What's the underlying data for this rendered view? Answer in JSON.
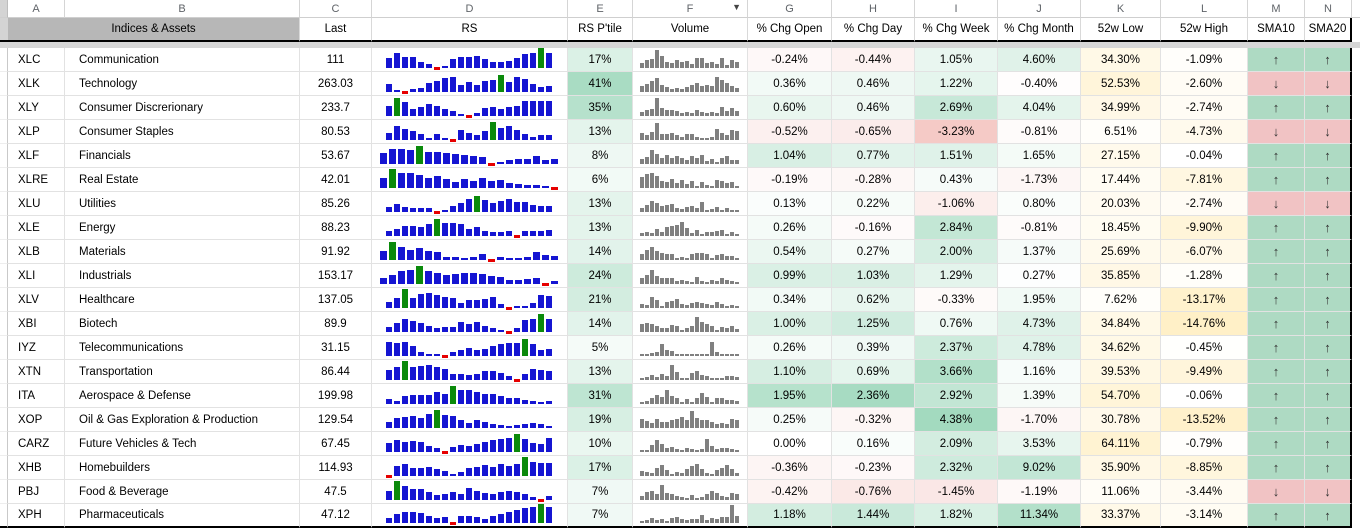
{
  "sheet": {
    "column_letters": [
      "A",
      "B",
      "C",
      "D",
      "E",
      "F",
      "G",
      "H",
      "I",
      "J",
      "K",
      "L",
      "M",
      "N"
    ],
    "filter_column": "F",
    "header": {
      "indices_assets": "Indices & Assets",
      "last": "Last",
      "rs": "RS",
      "rs_ptile": "RS P'tile",
      "volume": "Volume",
      "chg_open": "% Chg Open",
      "chg_day": "% Chg Day",
      "chg_week": "% Chg Week",
      "chg_month": "% Chg Month",
      "low52": "52w Low",
      "high52": "52w High",
      "sma10": "SMA10",
      "sma20": "SMA20"
    }
  },
  "arrows": {
    "up": "↑",
    "down": "↓"
  },
  "colors": {
    "green_target": "#57bb8a",
    "red_target": "#e67c73",
    "yellow_target": "#ffd666",
    "sma_up_bg": "#aedac3",
    "sma_down_bg": "#f1c3c4",
    "rs_blue": "#1515d2",
    "rs_green": "#0b8a0b",
    "rs_red": "#e60000",
    "volume_gray": "#808080",
    "header_grey": "#b7b7b7",
    "scales": {
      "open": 4.5,
      "day": 4.5,
      "week": 8,
      "month": 25,
      "ptile": 80,
      "low": 220,
      "high": 40
    }
  },
  "rows": [
    {
      "ticker": "XLC",
      "name": "Communication",
      "last": "111",
      "ptile": 17,
      "open": -0.24,
      "day": -0.44,
      "week": 1.05,
      "month": 4.6,
      "low": 34.3,
      "high": -1.09,
      "sma10": "up",
      "sma20": "up",
      "rs": [
        50,
        75,
        55,
        55,
        30,
        18,
        -1,
        12,
        45,
        55,
        55,
        62,
        45,
        30,
        30,
        35,
        50,
        68,
        75,
        "g100",
        75
      ],
      "vol": [
        25,
        38,
        45,
        90,
        60,
        30,
        25,
        38,
        32,
        35,
        20,
        48,
        50,
        25,
        30,
        20,
        50,
        15,
        38,
        28
      ]
    },
    {
      "ticker": "XLK",
      "name": "Technology",
      "last": "263.03",
      "ptile": 41,
      "open": 0.36,
      "day": 0.46,
      "week": 1.22,
      "month": -0.4,
      "low": 52.53,
      "high": -2.6,
      "sma10": "down",
      "sma20": "down",
      "rs": [
        38,
        12,
        -1,
        14,
        18,
        45,
        55,
        70,
        75,
        35,
        50,
        35,
        55,
        60,
        "g85",
        50,
        75,
        65,
        40,
        25,
        30
      ],
      "vol": [
        30,
        38,
        55,
        70,
        35,
        25,
        15,
        20,
        15,
        25,
        35,
        45,
        30,
        35,
        28,
        75,
        60,
        45,
        30,
        22
      ]
    },
    {
      "ticker": "XLY",
      "name": "Consumer Discrerionary",
      "last": "233.7",
      "ptile": 35,
      "open": 0.6,
      "day": 0.46,
      "week": 2.69,
      "month": 4.04,
      "low": 34.99,
      "high": -2.74,
      "sma10": "up",
      "sma20": "up",
      "rs": [
        50,
        "g90",
        70,
        35,
        45,
        60,
        50,
        35,
        25,
        12,
        -1,
        15,
        40,
        45,
        35,
        45,
        50,
        75,
        75,
        75,
        75
      ],
      "vol": [
        22,
        30,
        35,
        90,
        40,
        30,
        32,
        25,
        15,
        18,
        15,
        30,
        18,
        15,
        20,
        15,
        45,
        25,
        38,
        25
      ]
    },
    {
      "ticker": "XLP",
      "name": "Consumer Staples",
      "last": "80.53",
      "ptile": 13,
      "open": -0.52,
      "day": -0.65,
      "week": -3.23,
      "month": -0.81,
      "low": 6.51,
      "high": -4.73,
      "sma10": "down",
      "sma20": "down",
      "rs": [
        35,
        70,
        55,
        45,
        30,
        12,
        30,
        12,
        -1,
        50,
        35,
        25,
        45,
        "g90",
        60,
        70,
        50,
        30,
        15,
        25,
        25
      ],
      "vol": [
        35,
        25,
        40,
        85,
        30,
        28,
        35,
        25,
        15,
        32,
        28,
        15,
        12,
        12,
        15,
        55,
        35,
        25,
        48,
        45
      ]
    },
    {
      "ticker": "XLF",
      "name": "Financials",
      "last": "53.67",
      "ptile": 8,
      "open": 1.04,
      "day": 0.77,
      "week": 1.51,
      "month": 1.65,
      "low": 27.15,
      "high": -0.04,
      "sma10": "up",
      "sma20": "up",
      "rs": [
        55,
        75,
        75,
        70,
        "g90",
        60,
        60,
        55,
        50,
        45,
        40,
        35,
        -1,
        10,
        20,
        25,
        25,
        40,
        20,
        25
      ],
      "vol": [
        25,
        35,
        70,
        50,
        30,
        45,
        30,
        40,
        28,
        20,
        38,
        30,
        45,
        15,
        25,
        12,
        30,
        38,
        18,
        22
      ]
    },
    {
      "ticker": "XLRE",
      "name": "Real Estate",
      "last": "42.01",
      "ptile": 6,
      "open": -0.19,
      "day": -0.28,
      "week": 0.43,
      "month": -1.73,
      "low": 17.44,
      "high": -7.81,
      "sma10": "up",
      "sma20": "up",
      "rs": [
        50,
        "g95",
        75,
        75,
        65,
        50,
        60,
        45,
        30,
        45,
        35,
        50,
        35,
        40,
        25,
        20,
        15,
        15,
        12,
        -1
      ],
      "vol": [
        55,
        70,
        75,
        60,
        35,
        28,
        45,
        25,
        40,
        18,
        35,
        10,
        28,
        15,
        10,
        42,
        35,
        25,
        30,
        12
      ]
    },
    {
      "ticker": "XLU",
      "name": "Utilities",
      "last": "85.26",
      "ptile": 13,
      "open": 0.13,
      "day": 0.22,
      "week": -1.06,
      "month": 0.8,
      "low": 20.03,
      "high": -2.74,
      "sma10": "down",
      "sma20": "down",
      "rs": [
        25,
        40,
        25,
        20,
        20,
        18,
        -1,
        12,
        30,
        45,
        65,
        "g80",
        60,
        45,
        55,
        65,
        50,
        50,
        35,
        30,
        30
      ],
      "vol": [
        18,
        35,
        55,
        45,
        30,
        35,
        40,
        22,
        15,
        25,
        28,
        20,
        50,
        12,
        15,
        25,
        12,
        20,
        10,
        12
      ]
    },
    {
      "ticker": "XLE",
      "name": "Energy",
      "last": "88.23",
      "ptile": 13,
      "open": 0.26,
      "day": -0.16,
      "week": 2.84,
      "month": -0.81,
      "low": 18.45,
      "high": -9.9,
      "sma10": "up",
      "sma20": "up",
      "rs": [
        25,
        35,
        50,
        50,
        45,
        60,
        "g85",
        65,
        65,
        60,
        35,
        45,
        25,
        20,
        20,
        25,
        -1,
        25,
        25,
        25,
        30
      ],
      "vol": [
        15,
        18,
        15,
        35,
        20,
        45,
        50,
        55,
        70,
        40,
        15,
        28,
        12,
        18,
        20,
        25,
        32,
        12,
        22,
        10
      ]
    },
    {
      "ticker": "XLB",
      "name": "Materials",
      "last": "91.92",
      "ptile": 14,
      "open": 0.54,
      "day": 0.27,
      "week": 2.0,
      "month": 1.37,
      "low": 25.69,
      "high": -6.07,
      "sma10": "up",
      "sma20": "up",
      "rs": [
        45,
        "g90",
        65,
        50,
        60,
        45,
        40,
        15,
        15,
        12,
        15,
        30,
        -1,
        15,
        12,
        12,
        15,
        40,
        25,
        20
      ],
      "vol": [
        30,
        50,
        65,
        45,
        35,
        32,
        28,
        12,
        15,
        12,
        28,
        35,
        35,
        30,
        12,
        25,
        28,
        22,
        18,
        10
      ]
    },
    {
      "ticker": "XLI",
      "name": "Industrials",
      "last": "153.17",
      "ptile": 24,
      "open": 0.99,
      "day": 1.03,
      "week": 1.29,
      "month": 0.27,
      "low": 35.85,
      "high": -1.28,
      "sma10": "up",
      "sma20": "up",
      "rs": [
        30,
        45,
        65,
        70,
        "g90",
        65,
        55,
        45,
        50,
        55,
        55,
        50,
        40,
        35,
        20,
        20,
        25,
        30,
        -1,
        15
      ],
      "vol": [
        30,
        45,
        70,
        40,
        30,
        32,
        28,
        15,
        18,
        15,
        12,
        35,
        15,
        12,
        22,
        15,
        30,
        22,
        15,
        12
      ]
    },
    {
      "ticker": "XLV",
      "name": "Healthcare",
      "last": "137.05",
      "ptile": 21,
      "open": 0.34,
      "day": 0.62,
      "week": -0.33,
      "month": 1.95,
      "low": 7.62,
      "high": -13.17,
      "sma10": "up",
      "sma20": "up",
      "rs": [
        30,
        50,
        "g95",
        50,
        70,
        75,
        65,
        55,
        50,
        25,
        40,
        40,
        45,
        55,
        20,
        -1,
        8,
        10,
        25,
        65,
        60
      ],
      "vol": [
        20,
        15,
        55,
        40,
        12,
        28,
        35,
        45,
        22,
        15,
        25,
        30,
        25,
        20,
        15,
        30,
        20,
        12,
        15,
        10
      ]
    },
    {
      "ticker": "XBI",
      "name": "Biotech",
      "last": "89.9",
      "ptile": 14,
      "open": 1.0,
      "day": 1.25,
      "week": 0.76,
      "month": 4.73,
      "low": 34.84,
      "high": -14.76,
      "sma10": "up",
      "sma20": "up",
      "rs": [
        25,
        45,
        65,
        55,
        45,
        30,
        20,
        25,
        25,
        50,
        40,
        50,
        30,
        20,
        10,
        -1,
        20,
        60,
        65,
        "g90",
        65
      ],
      "vol": [
        40,
        45,
        42,
        30,
        18,
        22,
        35,
        30,
        12,
        20,
        28,
        75,
        50,
        40,
        30,
        12,
        25,
        22,
        30,
        15
      ]
    },
    {
      "ticker": "IYZ",
      "name": "Telecommunications",
      "last": "31.15",
      "ptile": 5,
      "open": 0.26,
      "day": 0.39,
      "week": 2.37,
      "month": 4.78,
      "low": 34.62,
      "high": -0.45,
      "sma10": "up",
      "sma20": "up",
      "rs": [
        70,
        65,
        70,
        50,
        20,
        10,
        10,
        -1,
        20,
        30,
        40,
        30,
        35,
        50,
        60,
        65,
        65,
        "g85",
        60,
        30,
        35
      ],
      "vol": [
        10,
        12,
        15,
        22,
        60,
        30,
        25,
        12,
        12,
        10,
        12,
        10,
        12,
        8,
        70,
        20,
        12,
        10,
        10,
        12
      ]
    },
    {
      "ticker": "XTN",
      "name": "Transportation",
      "last": "86.44",
      "ptile": 13,
      "open": 1.1,
      "day": 0.69,
      "week": 3.66,
      "month": 1.16,
      "low": 39.53,
      "high": -9.49,
      "sma10": "up",
      "sma20": "up",
      "rs": [
        50,
        65,
        "g95",
        65,
        70,
        75,
        65,
        55,
        30,
        30,
        25,
        30,
        45,
        45,
        35,
        20,
        -1,
        30,
        55,
        50,
        45
      ],
      "vol": [
        12,
        15,
        25,
        15,
        30,
        20,
        75,
        40,
        12,
        10,
        35,
        45,
        25,
        20,
        12,
        10,
        12,
        20,
        22,
        15
      ]
    },
    {
      "ticker": "ITA",
      "name": "Aerospace & Defense",
      "last": "199.98",
      "ptile": 31,
      "open": 1.95,
      "day": 2.36,
      "week": 2.92,
      "month": 1.39,
      "low": 54.7,
      "high": -0.06,
      "sma10": "up",
      "sma20": "up",
      "rs": [
        25,
        15,
        40,
        45,
        45,
        45,
        60,
        50,
        "g90",
        70,
        70,
        60,
        50,
        50,
        40,
        30,
        30,
        20,
        15,
        8,
        15
      ],
      "vol": [
        12,
        15,
        30,
        45,
        35,
        70,
        40,
        30,
        12,
        25,
        12,
        28,
        55,
        35,
        10,
        30,
        28,
        20,
        22,
        15
      ]
    },
    {
      "ticker": "XOP",
      "name": "Oil & Gas Exploration & Production",
      "last": "129.54",
      "ptile": 19,
      "open": 0.25,
      "day": -0.32,
      "week": 4.38,
      "month": -1.7,
      "low": 30.78,
      "high": -13.52,
      "sma10": "up",
      "sma20": "up",
      "rs": [
        30,
        50,
        55,
        60,
        50,
        70,
        "g90",
        65,
        60,
        40,
        25,
        40,
        30,
        20,
        15,
        8,
        15,
        20,
        25,
        20,
        10
      ],
      "vol": [
        45,
        35,
        25,
        45,
        30,
        28,
        40,
        45,
        55,
        40,
        85,
        50,
        40,
        38,
        30,
        22,
        25,
        20,
        45,
        38
      ]
    },
    {
      "ticker": "CARZ",
      "name": "Future Vehicles & Tech",
      "last": "67.45",
      "ptile": 10,
      "open": 0.0,
      "day": 0.16,
      "week": 2.09,
      "month": 3.53,
      "low": 64.11,
      "high": -0.79,
      "sma10": "up",
      "sma20": "up",
      "rs": [
        45,
        60,
        50,
        55,
        50,
        30,
        20,
        -1,
        25,
        35,
        30,
        40,
        50,
        60,
        65,
        70,
        "g90",
        65,
        45,
        40,
        70
      ],
      "vol": [
        10,
        10,
        35,
        60,
        40,
        22,
        25,
        15,
        12,
        20,
        15,
        12,
        15,
        65,
        30,
        15,
        22,
        18,
        15,
        12
      ]
    },
    {
      "ticker": "XHB",
      "name": "Homebuilders",
      "last": "114.93",
      "ptile": 17,
      "open": -0.36,
      "day": -0.23,
      "week": 2.32,
      "month": 9.02,
      "low": 35.9,
      "high": -8.85,
      "sma10": "up",
      "sma20": "up",
      "rs": [
        -1,
        50,
        60,
        40,
        40,
        45,
        35,
        25,
        12,
        18,
        40,
        45,
        55,
        45,
        60,
        50,
        60,
        "g95",
        70,
        65,
        65
      ],
      "vol": [
        25,
        20,
        15,
        40,
        55,
        28,
        12,
        20,
        15,
        35,
        50,
        60,
        35,
        15,
        10,
        30,
        40,
        55,
        35,
        15
      ]
    },
    {
      "ticker": "PBJ",
      "name": "Food & Beverage",
      "last": "47.5",
      "ptile": 7,
      "open": -0.42,
      "day": -0.76,
      "week": -1.45,
      "month": -1.19,
      "low": 11.06,
      "high": -3.44,
      "sma10": "down",
      "sma20": "down",
      "rs": [
        45,
        "g95",
        70,
        55,
        55,
        40,
        25,
        30,
        40,
        30,
        60,
        45,
        35,
        30,
        40,
        45,
        40,
        30,
        15,
        -1,
        20
      ],
      "vol": [
        20,
        40,
        45,
        30,
        75,
        35,
        28,
        20,
        15,
        10,
        25,
        12,
        15,
        30,
        45,
        35,
        22,
        15,
        35,
        30
      ]
    },
    {
      "ticker": "XPH",
      "name": "Pharmaceuticals",
      "last": "47.12",
      "ptile": 7,
      "open": 1.18,
      "day": 1.44,
      "week": 1.82,
      "month": 11.34,
      "low": 33.37,
      "high": -3.14,
      "sma10": "up",
      "sma20": "up",
      "rs": [
        25,
        45,
        55,
        55,
        50,
        35,
        25,
        30,
        -1,
        35,
        35,
        30,
        20,
        35,
        45,
        55,
        65,
        75,
        80,
        "g95",
        80
      ],
      "vol": [
        12,
        15,
        25,
        15,
        20,
        12,
        25,
        28,
        20,
        15,
        18,
        22,
        40,
        15,
        25,
        22,
        30,
        28,
        90,
        35
      ]
    }
  ]
}
